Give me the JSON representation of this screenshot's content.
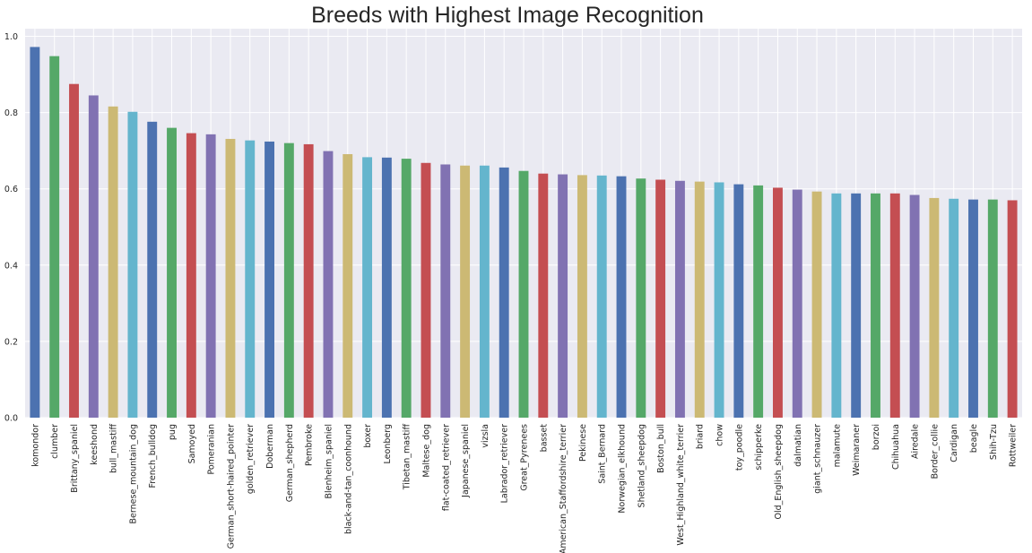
{
  "chart_data": {
    "type": "bar",
    "title": "Breeds with Highest Image Recognition",
    "xlabel": "",
    "ylabel": "",
    "ylim": [
      0,
      1.02
    ],
    "yticks": [
      "0.0",
      "0.2",
      "0.4",
      "0.6",
      "0.8",
      "1.0"
    ],
    "grid": true,
    "categories": [
      "komondor",
      "clumber",
      "Brittany_spaniel",
      "keeshond",
      "bull_mastiff",
      "Bernese_mountain_dog",
      "French_bulldog",
      "pug",
      "Samoyed",
      "Pomeranian",
      "German_short-haired_pointer",
      "golden_retriever",
      "Doberman",
      "German_shepherd",
      "Pembroke",
      "Blenheim_spaniel",
      "black-and-tan_coonhound",
      "boxer",
      "Leonberg",
      "Tibetan_mastiff",
      "Maltese_dog",
      "flat-coated_retriever",
      "Japanese_spaniel",
      "vizsla",
      "Labrador_retriever",
      "Great_Pyrenees",
      "basset",
      "American_Staffordshire_terrier",
      "Pekinese",
      "Saint_Bernard",
      "Norwegian_elkhound",
      "Shetland_sheepdog",
      "Boston_bull",
      "West_Highland_white_terrier",
      "briard",
      "chow",
      "toy_poodle",
      "schipperke",
      "Old_English_sheepdog",
      "dalmatian",
      "giant_schnauzer",
      "malamute",
      "Weimaraner",
      "borzoi",
      "Chihuahua",
      "Airedale",
      "Border_collie",
      "Cardigan",
      "beagle",
      "Shih-Tzu",
      "Rottweiler"
    ],
    "values": [
      0.972,
      0.948,
      0.875,
      0.845,
      0.816,
      0.802,
      0.776,
      0.76,
      0.746,
      0.743,
      0.731,
      0.727,
      0.724,
      0.72,
      0.717,
      0.699,
      0.691,
      0.683,
      0.682,
      0.679,
      0.668,
      0.664,
      0.661,
      0.661,
      0.656,
      0.647,
      0.64,
      0.638,
      0.636,
      0.635,
      0.633,
      0.627,
      0.624,
      0.621,
      0.619,
      0.617,
      0.612,
      0.609,
      0.603,
      0.598,
      0.593,
      0.588,
      0.588,
      0.588,
      0.588,
      0.584,
      0.576,
      0.574,
      0.572,
      0.572,
      0.57
    ],
    "colors": [
      "#4c72b0",
      "#55a868",
      "#c44e52",
      "#8172b2",
      "#ccb974",
      "#64b5cd"
    ],
    "background": "#eaeaf2",
    "gridcolor": "#ffffff"
  }
}
